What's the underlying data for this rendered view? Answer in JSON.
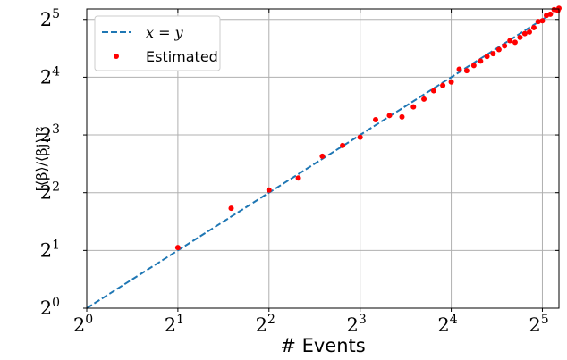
{
  "chart_data": {
    "type": "scatter",
    "xscale": "log2",
    "yscale": "log2",
    "xlim": [
      1,
      36.3
    ],
    "ylim": [
      1,
      36.3
    ],
    "xticks": [
      {
        "value": 1,
        "base": "2",
        "exp": "0"
      },
      {
        "value": 2,
        "base": "2",
        "exp": "1"
      },
      {
        "value": 4,
        "base": "2",
        "exp": "2"
      },
      {
        "value": 8,
        "base": "2",
        "exp": "3"
      },
      {
        "value": 16,
        "base": "2",
        "exp": "4"
      },
      {
        "value": 32,
        "base": "2",
        "exp": "5"
      }
    ],
    "yticks": [
      {
        "value": 1,
        "base": "2",
        "exp": "0"
      },
      {
        "value": 2,
        "base": "2",
        "exp": "1"
      },
      {
        "value": 4,
        "base": "2",
        "exp": "2"
      },
      {
        "value": 8,
        "base": "2",
        "exp": "3"
      },
      {
        "value": 16,
        "base": "2",
        "exp": "4"
      },
      {
        "value": 32,
        "base": "2",
        "exp": "5"
      }
    ],
    "xlabel": "# Events",
    "ylabel": "[⟨β⟩/⟨βj⟩]²",
    "grid": true,
    "legend": {
      "position": "top-left",
      "entries": [
        {
          "label": "x = y",
          "style": "dashed-line",
          "color": "#1f77b4"
        },
        {
          "label": "Estimated",
          "style": "dot",
          "color": "#ff0000"
        }
      ]
    },
    "reference_line": {
      "name": "x = y",
      "color": "#1f77b4",
      "dash": true
    },
    "series": [
      {
        "name": "Estimated",
        "color": "#ff0000",
        "points": [
          [
            2,
            2.07
          ],
          [
            3,
            3.32
          ],
          [
            4,
            4.13
          ],
          [
            5,
            4.77
          ],
          [
            6,
            6.2
          ],
          [
            7,
            7.05
          ],
          [
            8,
            7.78
          ],
          [
            9,
            9.61
          ],
          [
            10,
            10.1
          ],
          [
            11,
            9.93
          ],
          [
            12,
            11.2
          ],
          [
            13,
            12.3
          ],
          [
            14,
            13.6
          ],
          [
            15,
            14.5
          ],
          [
            16,
            15.1
          ],
          [
            17,
            17.6
          ],
          [
            18,
            17.3
          ],
          [
            19,
            18.4
          ],
          [
            20,
            19.4
          ],
          [
            21,
            20.5
          ],
          [
            22,
            21.2
          ],
          [
            23,
            22.3
          ],
          [
            24,
            23.3
          ],
          [
            25,
            24.8
          ],
          [
            26,
            24.3
          ],
          [
            27,
            25.8
          ],
          [
            28,
            27.0
          ],
          [
            29,
            27.5
          ],
          [
            30,
            29.0
          ],
          [
            31,
            31.2
          ],
          [
            32,
            31.5
          ],
          [
            33,
            33.6
          ],
          [
            34,
            34.1
          ],
          [
            35,
            36.0
          ],
          [
            36,
            35.6
          ],
          [
            36.3,
            36.6
          ]
        ]
      }
    ]
  }
}
